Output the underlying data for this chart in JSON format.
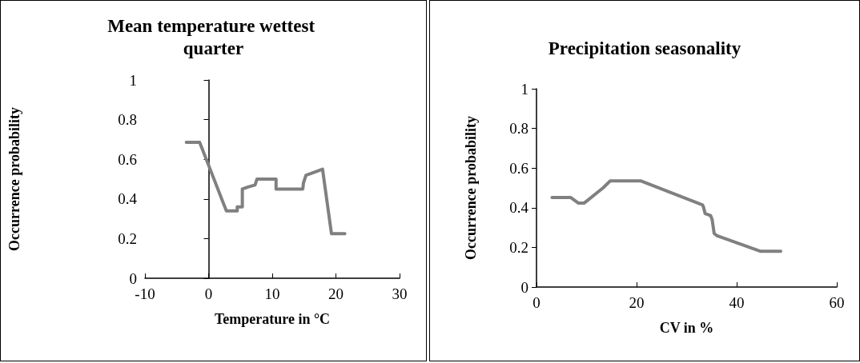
{
  "chart_data": [
    {
      "type": "line",
      "title": "Mean temperature wettest quarter",
      "xlabel": "Temperature in °C",
      "ylabel": "Occurrence probability",
      "xlim": [
        -10,
        30
      ],
      "xticks": [
        -10,
        0,
        10,
        20,
        30
      ],
      "ylim": [
        0,
        1
      ],
      "yticks": [
        0,
        0.2,
        0.4,
        0.6,
        0.8,
        1
      ],
      "marker": "none",
      "line_style": "solid",
      "series": [
        {
          "color": "#808080",
          "x": [
            -3.5,
            -1.4,
            0,
            2.3,
            2.8,
            4.5,
            4.5,
            5.3,
            5.3,
            6.2,
            7.3,
            7.6,
            10.6,
            10.6,
            14.8,
            14.9,
            15.3,
            16.2,
            17.9,
            19.3,
            21.4
          ],
          "values": [
            0.685,
            0.685,
            0.57,
            0.38,
            0.34,
            0.34,
            0.36,
            0.36,
            0.45,
            0.46,
            0.47,
            0.5,
            0.5,
            0.45,
            0.45,
            0.48,
            0.52,
            0.53,
            0.55,
            0.225,
            0.225
          ]
        }
      ]
    },
    {
      "type": "line",
      "title": "Precipitation seasonality",
      "xlabel": "CV in %",
      "ylabel": "Occurrence probability",
      "xlim": [
        0,
        60
      ],
      "xticks": [
        0,
        20,
        40,
        60
      ],
      "ylim": [
        0,
        1
      ],
      "yticks": [
        0,
        0.2,
        0.4,
        0.6,
        0.8,
        1
      ],
      "marker": "none",
      "line_style": "solid",
      "series": [
        {
          "color": "#808080",
          "x": [
            3.1,
            6.8,
            8.4,
            9.5,
            13.3,
            14.7,
            20.9,
            33.2,
            33.4,
            33.7,
            34.8,
            35.1,
            35.5,
            36,
            44.8,
            48.8
          ],
          "values": [
            0.452,
            0.452,
            0.423,
            0.423,
            0.5,
            0.535,
            0.535,
            0.414,
            0.4,
            0.37,
            0.36,
            0.34,
            0.27,
            0.26,
            0.18,
            0.18
          ]
        }
      ]
    }
  ]
}
